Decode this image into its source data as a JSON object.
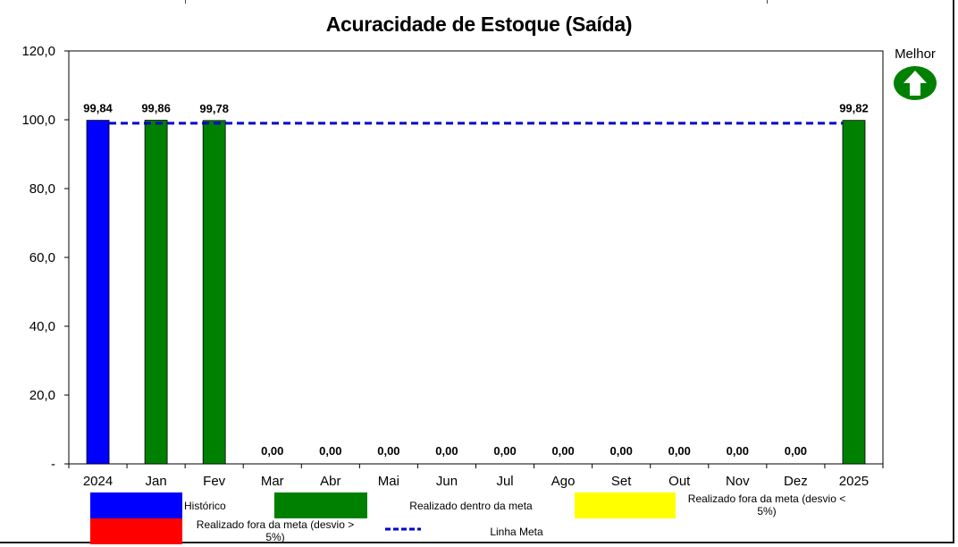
{
  "chart_data": {
    "type": "bar",
    "title": "Acuracidade de Estoque (Saída)",
    "categories": [
      "2024",
      "Jan",
      "Fev",
      "Mar",
      "Abr",
      "Mai",
      "Jun",
      "Jul",
      "Ago",
      "Set",
      "Out",
      "Nov",
      "Dez",
      "2025"
    ],
    "values": [
      99.84,
      99.86,
      99.78,
      0,
      0,
      0,
      0,
      0,
      0,
      0,
      0,
      0,
      0,
      99.82
    ],
    "data_labels": [
      "99,84",
      "99,86",
      "99,78",
      "0,00",
      "0,00",
      "0,00",
      "0,00",
      "0,00",
      "0,00",
      "0,00",
      "0,00",
      "0,00",
      "0,00",
      "99,82"
    ],
    "bar_status": [
      "historico",
      "dentro",
      "dentro",
      "dentro",
      "dentro",
      "dentro",
      "dentro",
      "dentro",
      "dentro",
      "dentro",
      "dentro",
      "dentro",
      "dentro",
      "dentro"
    ],
    "meta_value": 99.0,
    "ylim": [
      0,
      120
    ],
    "yticks": [
      0,
      20,
      40,
      60,
      80,
      100,
      120
    ],
    "ytick_labels": [
      "-",
      "20,0",
      "40,0",
      "60,0",
      "80,0",
      "100,0",
      "120,0"
    ],
    "xlabel": "",
    "ylabel": "",
    "grid": false,
    "legend": [
      {
        "key": "historico",
        "label": "Histórico",
        "color": "#0000ff"
      },
      {
        "key": "dentro",
        "label": "Realizado dentro da meta",
        "color": "#008000"
      },
      {
        "key": "fora_menor",
        "label": "Realizado fora da meta (desvio < 5%)",
        "color": "#ffff00"
      },
      {
        "key": "fora_maior",
        "label": "Realizado fora da meta (desvio > 5%)",
        "color": "#ff0000"
      },
      {
        "key": "meta",
        "label": "Linha Meta",
        "color": "#0000cc"
      }
    ],
    "legend_placement": "bottom"
  },
  "indicator": {
    "label": "Melhor",
    "icon": "up-arrow-icon",
    "color": "#008000"
  }
}
